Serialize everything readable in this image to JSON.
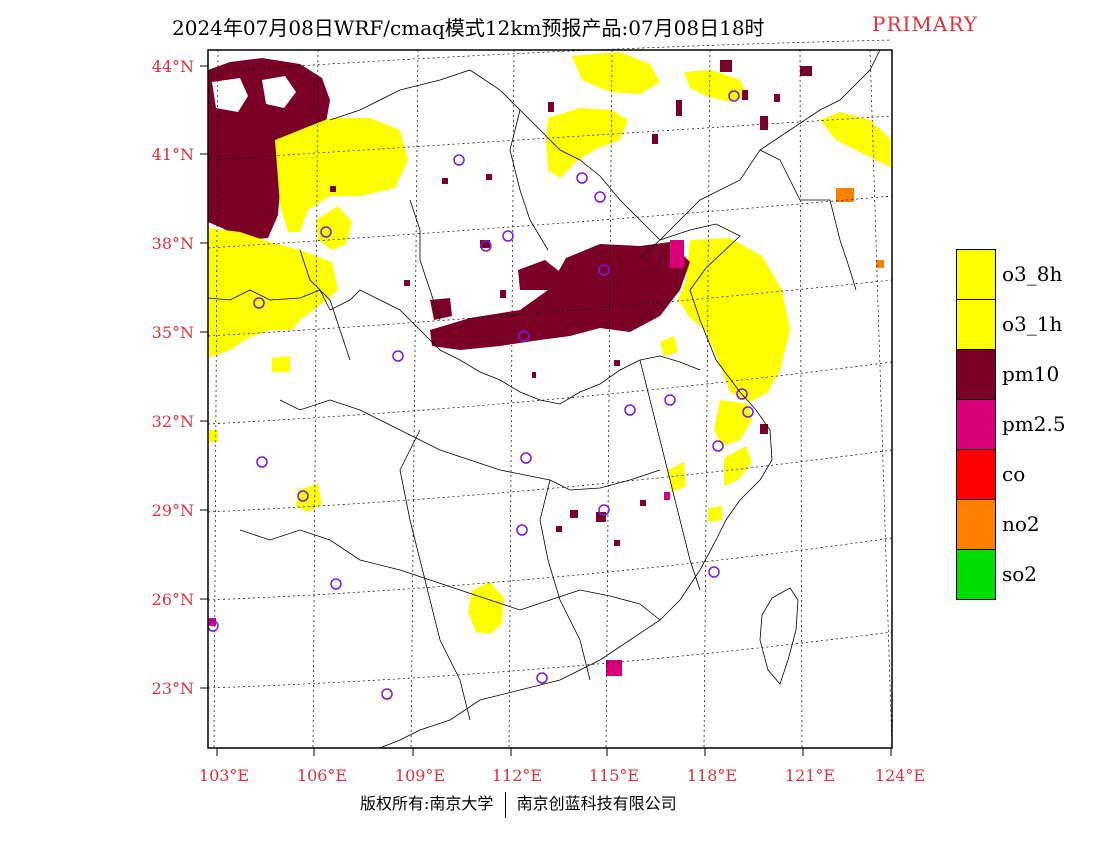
{
  "title": {
    "main": "2024年07月08日WRF/cmaq模式12km预报产品:07月08日18时",
    "tag": "PRIMARY"
  },
  "axes": {
    "lat_labels": [
      "44°N",
      "41°N",
      "38°N",
      "35°N",
      "32°N",
      "29°N",
      "26°N",
      "23°N"
    ],
    "lon_labels": [
      "103°E",
      "106°E",
      "109°E",
      "112°E",
      "115°E",
      "118°E",
      "121°E",
      "124°E"
    ],
    "label_color": "#e0303a"
  },
  "legend": [
    {
      "label": "o3_8h",
      "color": "#ffff00"
    },
    {
      "label": "o3_1h",
      "color": "#ffff00"
    },
    {
      "label": "pm10",
      "color": "#7a0028"
    },
    {
      "label": "pm2.5",
      "color": "#d8007a"
    },
    {
      "label": "co",
      "color": "#ff0000"
    },
    {
      "label": "no2",
      "color": "#ff7f00"
    },
    {
      "label": "so2",
      "color": "#00dd00"
    }
  ],
  "footer": {
    "left": "版权所有:南京大学",
    "right": "南京创蓝科技有限公司"
  }
}
